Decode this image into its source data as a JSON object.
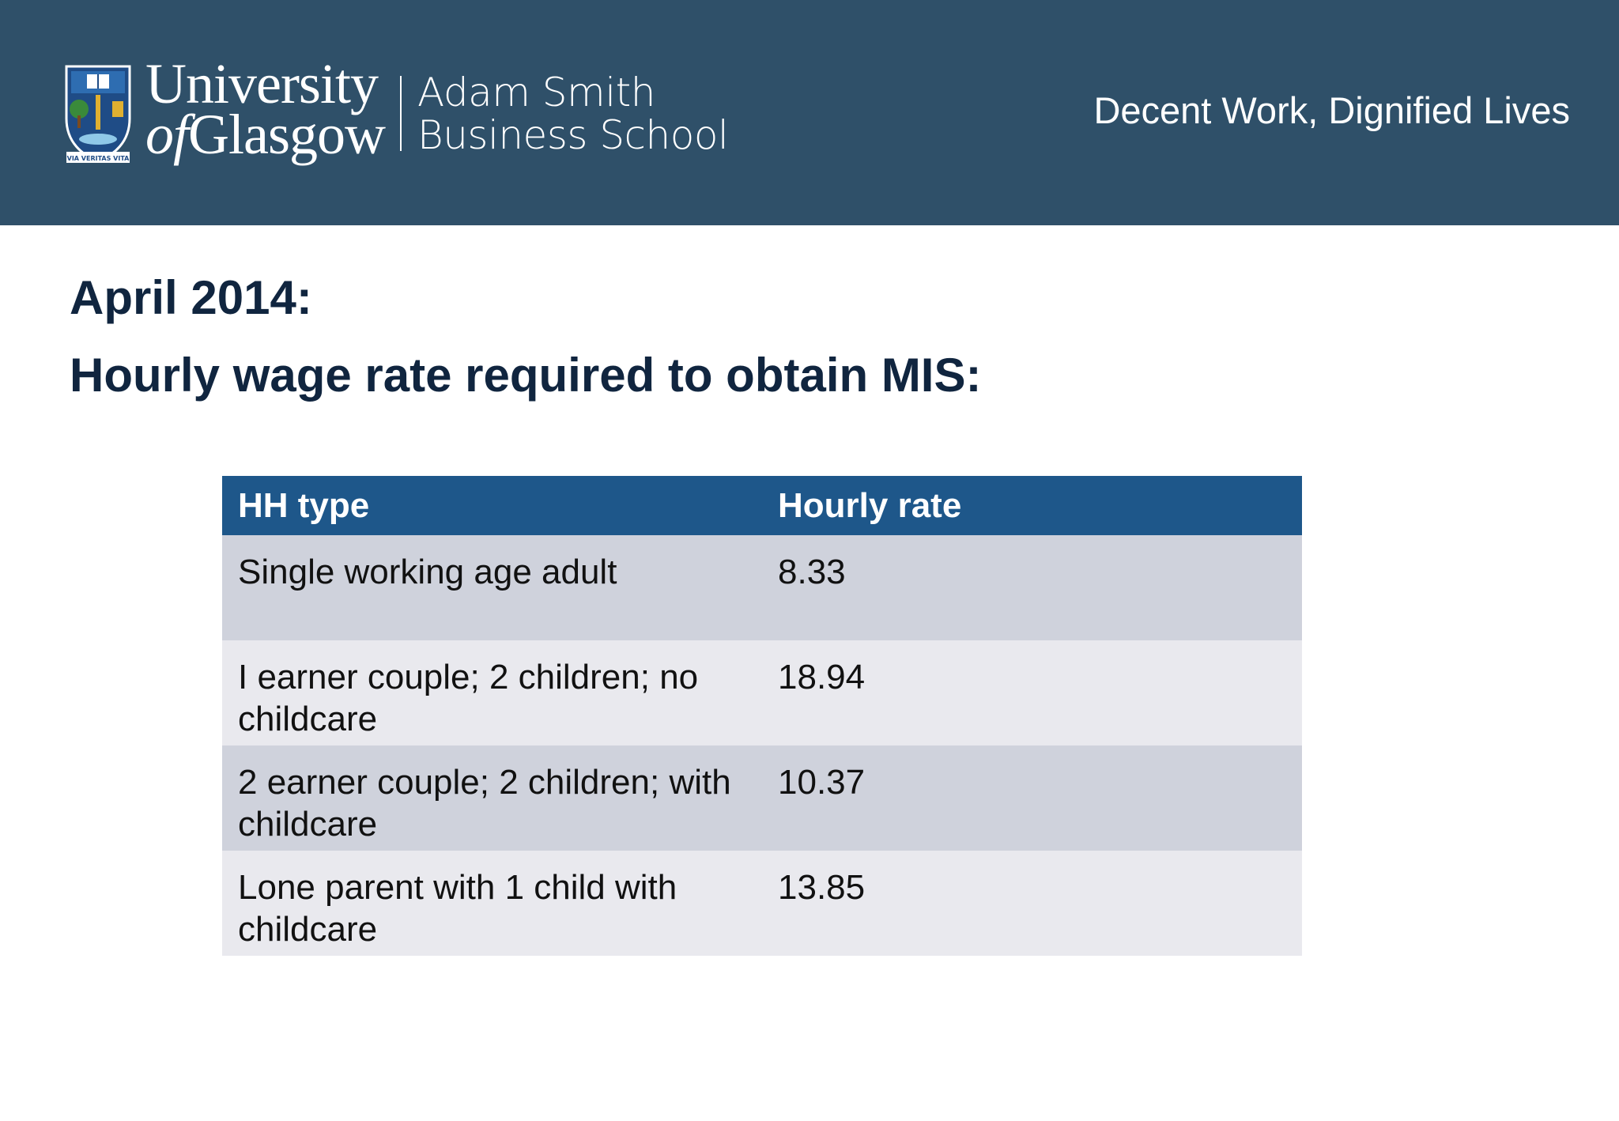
{
  "header": {
    "university_line1": "University",
    "university_of": "of",
    "university_glasgow": "Glasgow",
    "crest_motto": "VIA VERITAS VITA",
    "school_line1": "Adam Smith",
    "school_line2": "Business School",
    "tagline": "Decent Work, Dignified Lives"
  },
  "slide": {
    "heading1": "April 2014:",
    "heading2": "Hourly wage rate required to obtain MIS:"
  },
  "table": {
    "columns": [
      "HH type",
      "Hourly rate"
    ],
    "rows": [
      {
        "type": "Single working age adult",
        "rate": "8.33"
      },
      {
        "type": "I earner couple; 2 children; no childcare",
        "rate": "18.94"
      },
      {
        "type": "2 earner couple; 2 children; with childcare",
        "rate": "10.37"
      },
      {
        "type": "Lone parent with 1 child with childcare",
        "rate": "13.85"
      }
    ]
  },
  "colors": {
    "banner": "#2f5069",
    "heading_text": "#10253f",
    "table_header": "#1e578a",
    "row_dark": "#cfd2dc",
    "row_light": "#e9e9ee"
  }
}
